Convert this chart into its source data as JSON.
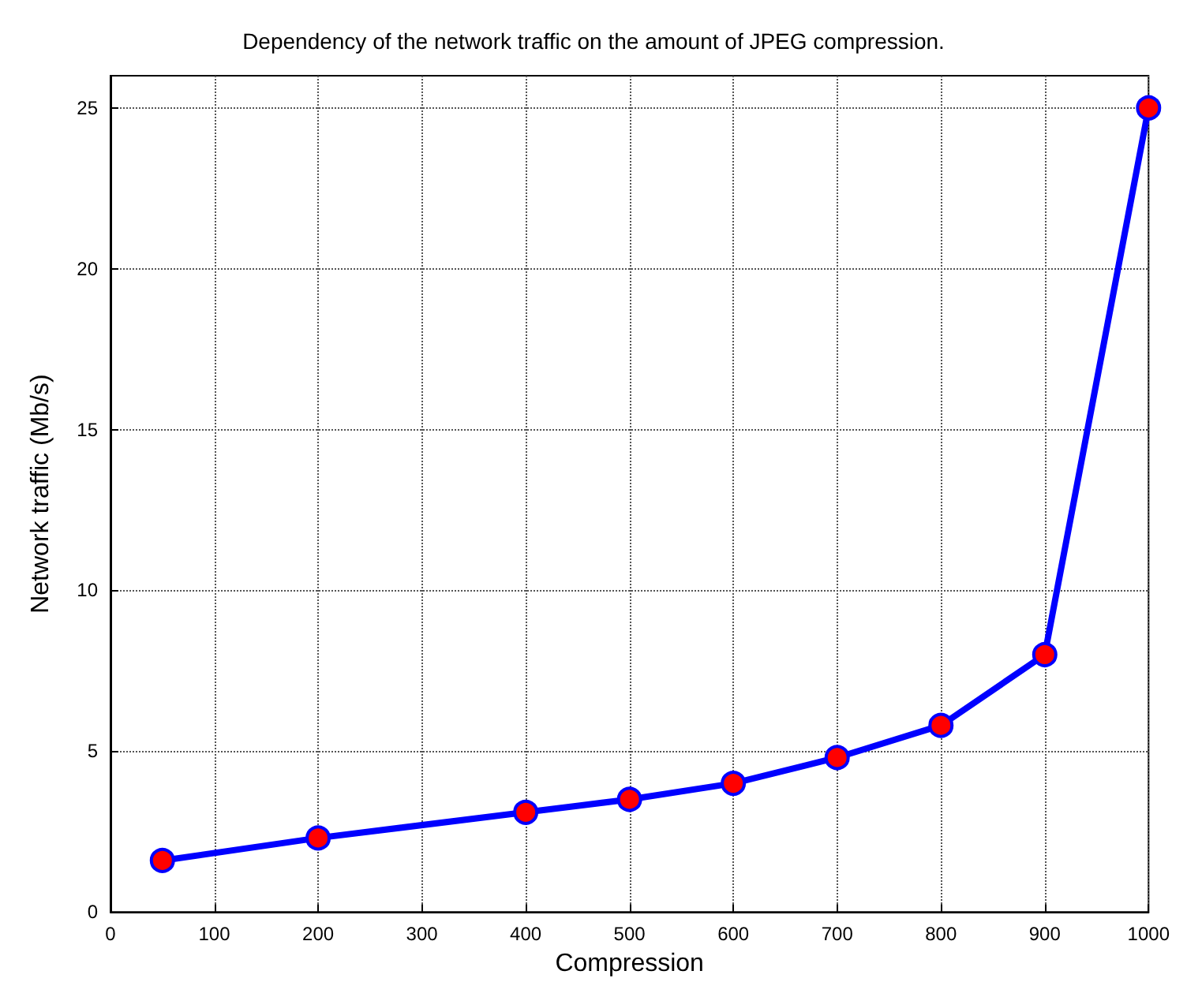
{
  "chart_data": {
    "type": "line",
    "title": "Dependency of the network traffic on the amount of JPEG compression.",
    "xlabel": "Compression",
    "ylabel": "Network traffic (Mb/s)",
    "x": [
      50,
      200,
      400,
      500,
      600,
      700,
      800,
      900,
      1000
    ],
    "series": [
      {
        "color": "#0000ff",
        "colors": [
          "#ff0000",
          "#ff0000",
          "#ff0000",
          "#ff0000",
          "#ff0000",
          "#ff0000",
          "#ff0000",
          "#ff0000",
          "#ff0000"
        ],
        "values": [
          1.6,
          2.3,
          3.1,
          3.5,
          4.0,
          4.8,
          5.8,
          8.0,
          25
        ]
      }
    ],
    "xlim": [
      0,
      1000
    ],
    "xticks": [
      0,
      100,
      200,
      300,
      400,
      500,
      600,
      700,
      800,
      900,
      1000
    ],
    "ylim": [
      0,
      26
    ],
    "yticks": [
      0,
      5,
      10,
      15,
      20,
      25
    ],
    "grid": true,
    "marker": "circle",
    "line_style": "solid"
  }
}
